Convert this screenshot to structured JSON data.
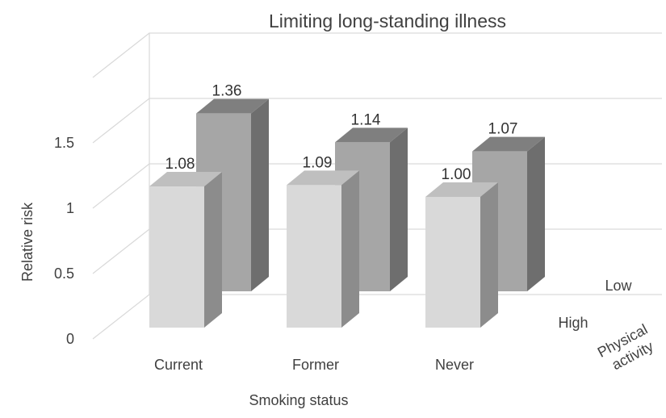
{
  "chart_data": {
    "type": "bar",
    "title": "Limiting long-standing illness",
    "xlabel": "Smoking status",
    "ylabel": "Relative risk",
    "zlabel": "Physical activity",
    "categories": [
      "Current",
      "Former",
      "Never"
    ],
    "series": [
      {
        "name": "High",
        "values": [
          1.08,
          1.09,
          1.0
        ],
        "data_labels": [
          "1.08",
          "1.09",
          "1.00"
        ],
        "color": "#d9d9d9"
      },
      {
        "name": "Low",
        "values": [
          1.36,
          1.14,
          1.07
        ],
        "data_labels": [
          "1.36",
          "1.14",
          "1.07"
        ],
        "color": "#a6a6a6"
      }
    ],
    "yticks": [
      "0",
      "0.5",
      "1",
      "1.5"
    ],
    "ylim": [
      0,
      2
    ],
    "grid": true,
    "legend": "none"
  }
}
